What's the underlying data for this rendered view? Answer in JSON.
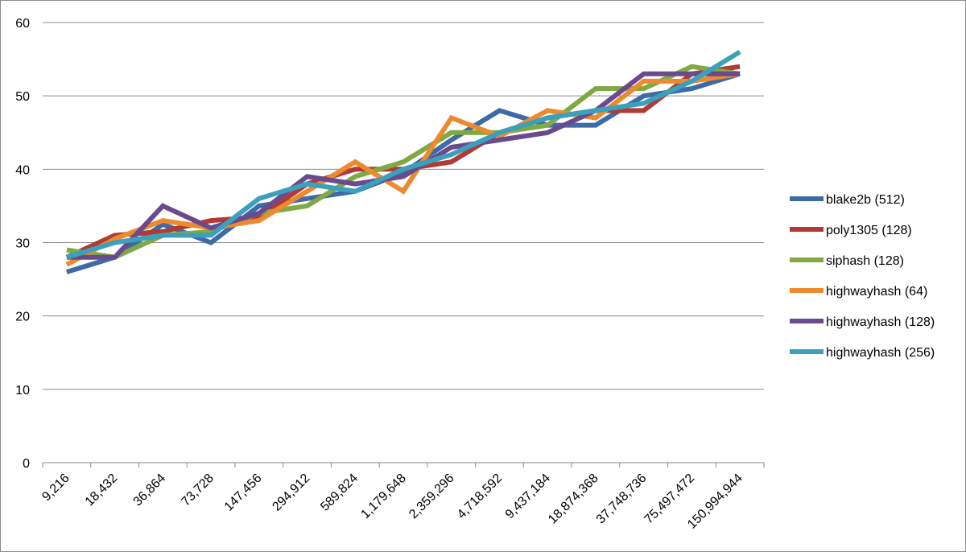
{
  "chart_data": {
    "type": "line",
    "title": "",
    "xlabel": "",
    "ylabel": "",
    "categories": [
      "9,216",
      "18,432",
      "36,864",
      "73,728",
      "147,456",
      "294,912",
      "589,824",
      "1,179,648",
      "2,359,296",
      "4,718,592",
      "9,437,184",
      "18,874,368",
      "37,748,736",
      "75,497,472",
      "150,994,944"
    ],
    "ylim": [
      0,
      60
    ],
    "yticks": [
      0,
      10,
      20,
      30,
      40,
      50,
      60
    ],
    "grid": "horizontal",
    "legend_position": "right",
    "series": [
      {
        "name": "blake2b (512)",
        "color": "#3e6aa5",
        "values": [
          26,
          28,
          32.5,
          30,
          35,
          36,
          37,
          39.5,
          44,
          48,
          46,
          46,
          50,
          51,
          53
        ]
      },
      {
        "name": "poly1305 (128)",
        "color": "#b03a36",
        "values": [
          28,
          31,
          31.5,
          33,
          33.5,
          38,
          40,
          40,
          41,
          45,
          47,
          48,
          48,
          53,
          54
        ]
      },
      {
        "name": "siphash (128)",
        "color": "#80a843",
        "values": [
          29,
          28,
          31,
          31.5,
          34,
          35,
          39,
          41,
          45,
          45,
          46,
          51,
          51,
          54,
          53
        ]
      },
      {
        "name": "highwayhash (64)",
        "color": "#ec8a2f",
        "values": [
          27,
          30.5,
          33,
          32,
          33,
          37,
          41,
          37,
          47,
          44.5,
          48,
          47,
          52,
          52,
          53
        ]
      },
      {
        "name": "highwayhash (128)",
        "color": "#6a4a8d",
        "values": [
          28,
          28,
          35,
          32,
          34,
          39,
          38,
          39,
          43,
          44,
          45,
          48,
          53,
          53,
          53
        ]
      },
      {
        "name": "highwayhash (256)",
        "color": "#3ba0bb",
        "values": [
          28,
          30,
          31,
          31,
          36,
          38,
          37,
          40,
          42,
          45,
          47,
          48,
          49,
          52,
          56
        ]
      }
    ]
  }
}
